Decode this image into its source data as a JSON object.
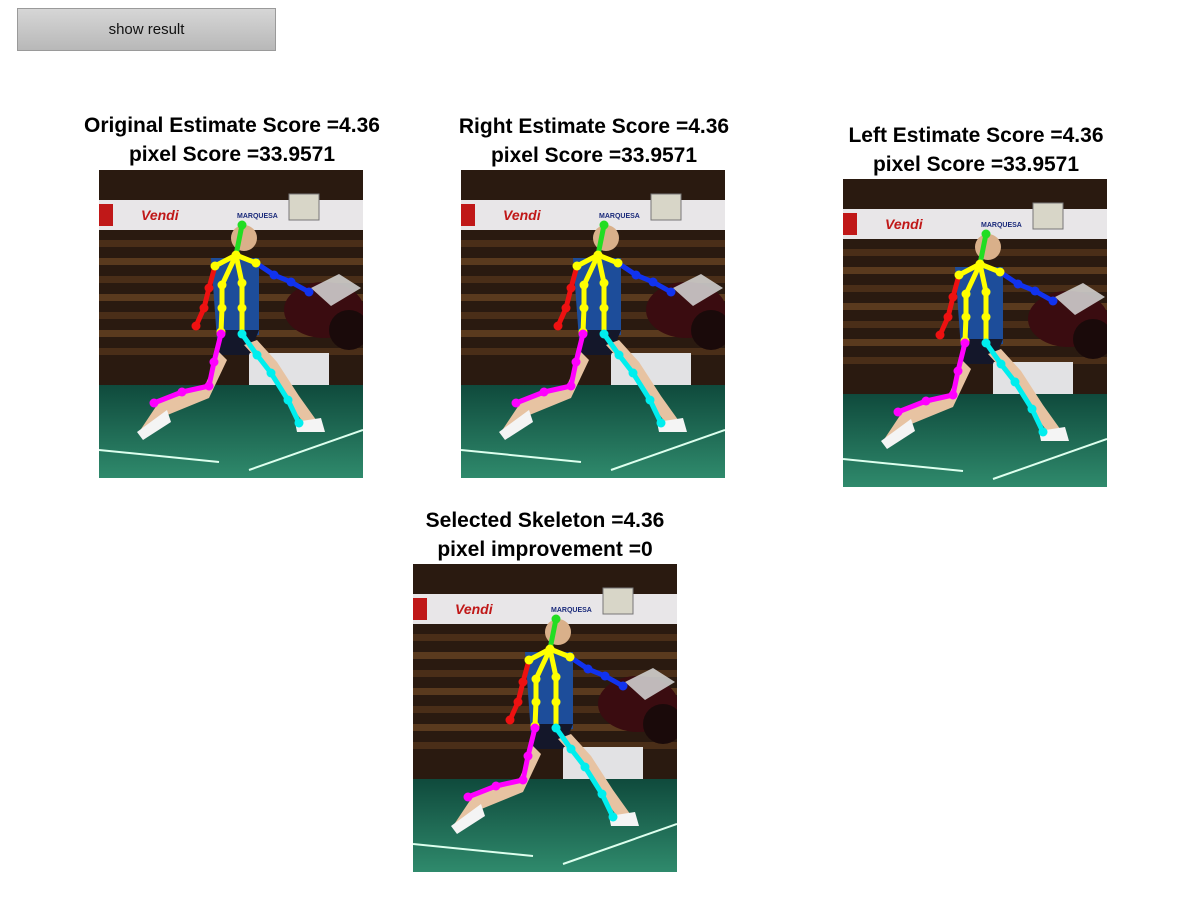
{
  "toolbar": {
    "show_result_label": "show result"
  },
  "panels": [
    {
      "id": "original",
      "line1": "Original Estimate Score =4.36",
      "line2": "pixel Score =33.9571"
    },
    {
      "id": "right",
      "line1": "Right Estimate Score =4.36",
      "line2": "pixel Score =33.9571"
    },
    {
      "id": "left",
      "line1": "Left Estimate Score =4.36",
      "line2": "pixel Score =33.9571"
    },
    {
      "id": "selected",
      "line1": "Selected Skeleton =4.36",
      "line2": "pixel improvement =0"
    }
  ],
  "skeleton_colors": {
    "head": "#22dd22",
    "torso": "#ffff00",
    "right_arm": "#ee1111",
    "left_arm": "#1133ee",
    "right_leg": "#ff00ff",
    "left_leg": "#00eeee"
  },
  "scene_text": {
    "banner_brand": "Vendi",
    "banner_sponsor": "MARQUESA"
  }
}
